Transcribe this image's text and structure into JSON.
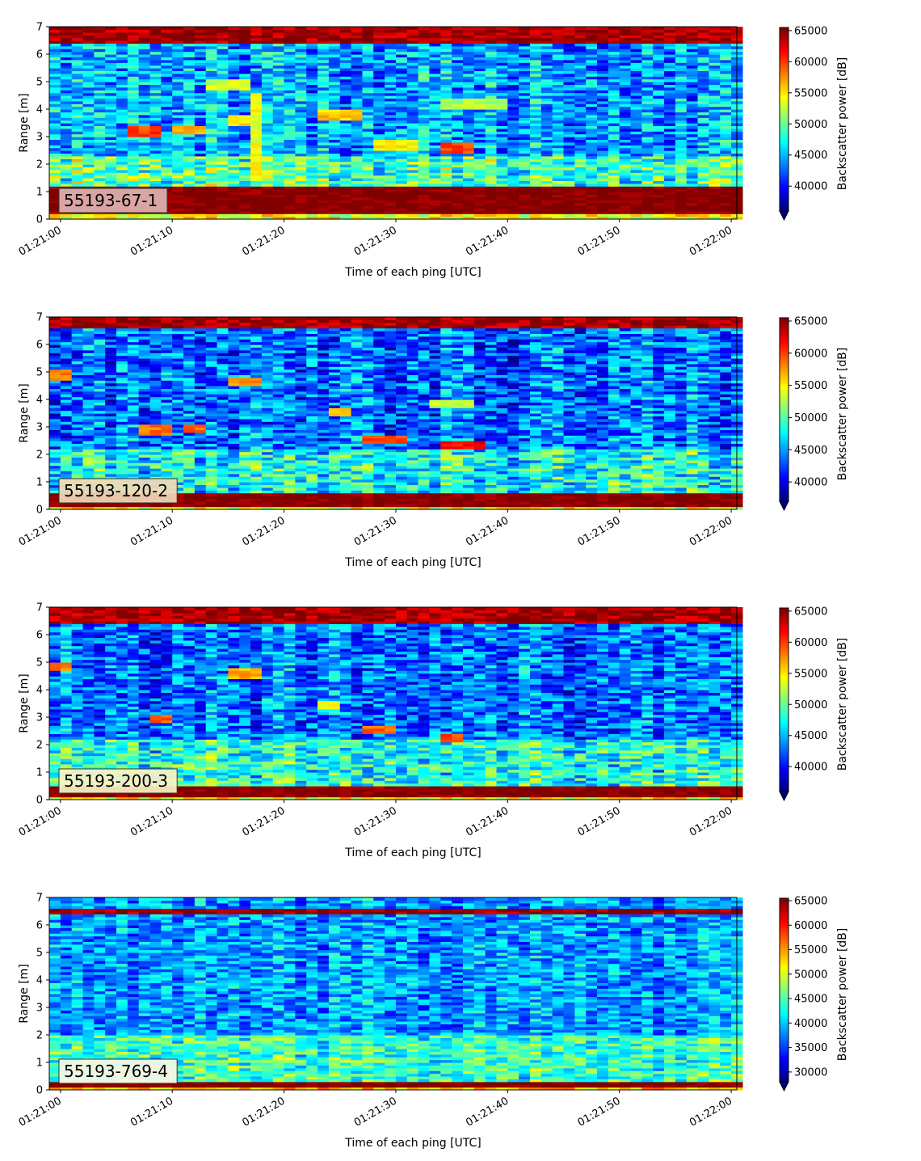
{
  "chart_data": [
    {
      "type": "heatmap",
      "panel_label": "55193-67-1",
      "label_box_color": "#dfb3b3",
      "x_ticks": [
        "01:21:00",
        "01:21:10",
        "01:21:20",
        "01:21:30",
        "01:21:40",
        "01:21:50",
        "01:22:00"
      ],
      "x_range_seconds": [
        -1,
        60.5
      ],
      "xlabel": "Time of each ping [UTC]",
      "ylabel": "Range [m]",
      "y_ticks": [
        "0",
        "1",
        "2",
        "3",
        "4",
        "5",
        "6",
        "7"
      ],
      "ylim": [
        0,
        7
      ],
      "colorbar": {
        "label": "Backscatter power [dB]",
        "ticks": [
          "40000",
          "45000",
          "50000",
          "55000",
          "60000",
          "65000"
        ],
        "vmin": 36000,
        "vmax": 65500,
        "colormap": "jet",
        "extend": "min"
      },
      "profile": {
        "bottom_band": [
          0.25,
          1.2
        ],
        "top_band": [
          6.4,
          7.0
        ],
        "background_mean": 44500,
        "noise": 4500,
        "features": [
          {
            "t": 7.5,
            "r": 3.2,
            "dt": 2.5,
            "dr": 0.35,
            "v": 60000
          },
          {
            "t": 11.5,
            "r": 3.25,
            "dt": 2.0,
            "dr": 0.25,
            "v": 57000
          },
          {
            "t": 16.0,
            "r": 3.6,
            "dt": 2.0,
            "dr": 0.3,
            "v": 55000
          },
          {
            "t": 17.7,
            "r": 3.0,
            "dt": 0.6,
            "dr": 3.0,
            "v": 54000
          },
          {
            "t": 25.0,
            "r": 3.8,
            "dt": 4.0,
            "dr": 0.3,
            "v": 56000
          },
          {
            "t": 30.0,
            "r": 2.7,
            "dt": 4.0,
            "dr": 0.3,
            "v": 55000
          },
          {
            "t": 35.5,
            "r": 2.65,
            "dt": 3.0,
            "dr": 0.3,
            "v": 60000
          },
          {
            "t": 37.0,
            "r": 4.2,
            "dt": 6.0,
            "dr": 0.3,
            "v": 52000
          },
          {
            "t": 15.0,
            "r": 4.9,
            "dt": 4.0,
            "dr": 0.3,
            "v": 53000
          }
        ],
        "bright_range": [
          1.0,
          2.3
        ],
        "bright_boost": 6000
      }
    },
    {
      "type": "heatmap",
      "panel_label": "55193-120-2",
      "label_box_color": "#f2d9b8",
      "x_ticks": [
        "01:21:00",
        "01:21:10",
        "01:21:20",
        "01:21:30",
        "01:21:40",
        "01:21:50",
        "01:22:00"
      ],
      "x_range_seconds": [
        -1,
        60.5
      ],
      "xlabel": "Time of each ping [UTC]",
      "ylabel": "Range [m]",
      "y_ticks": [
        "0",
        "1",
        "2",
        "3",
        "4",
        "5",
        "6",
        "7"
      ],
      "ylim": [
        0,
        7
      ],
      "colorbar": {
        "label": "Backscatter power [dB]",
        "ticks": [
          "40000",
          "45000",
          "50000",
          "55000",
          "60000",
          "65000"
        ],
        "vmin": 37000,
        "vmax": 65500,
        "colormap": "jet",
        "extend": "min"
      },
      "profile": {
        "bottom_band": [
          0.1,
          0.55
        ],
        "top_band": [
          6.55,
          7.0
        ],
        "background_mean": 43500,
        "noise": 4500,
        "features": [
          {
            "t": 8.5,
            "r": 2.95,
            "dt": 2.0,
            "dr": 0.3,
            "v": 59000
          },
          {
            "t": 12.0,
            "r": 2.95,
            "dt": 1.0,
            "dr": 0.25,
            "v": 59000
          },
          {
            "t": 16.5,
            "r": 4.65,
            "dt": 2.0,
            "dr": 0.2,
            "v": 58000
          },
          {
            "t": 25.0,
            "r": 3.55,
            "dt": 2.0,
            "dr": 0.2,
            "v": 57000
          },
          {
            "t": 29.0,
            "r": 2.55,
            "dt": 2.5,
            "dr": 0.2,
            "v": 60000
          },
          {
            "t": 36.0,
            "r": 2.4,
            "dt": 2.5,
            "dr": 0.2,
            "v": 62000
          },
          {
            "t": 35.0,
            "r": 3.9,
            "dt": 3.0,
            "dr": 0.2,
            "v": 53000
          },
          {
            "t": 0.0,
            "r": 4.9,
            "dt": 1.5,
            "dr": 0.25,
            "v": 58000
          }
        ],
        "bright_range": [
          0.6,
          2.2
        ],
        "bright_boost": 5500
      }
    },
    {
      "type": "heatmap",
      "panel_label": "55193-200-3",
      "label_box_color": "#fbf2c6",
      "x_ticks": [
        "01:21:00",
        "01:21:10",
        "01:21:20",
        "01:21:30",
        "01:21:40",
        "01:21:50",
        "01:22:00"
      ],
      "x_range_seconds": [
        -1,
        60.5
      ],
      "xlabel": "Time of each ping [UTC]",
      "ylabel": "Range [m]",
      "y_ticks": [
        "0",
        "1",
        "2",
        "3",
        "4",
        "5",
        "6",
        "7"
      ],
      "ylim": [
        0,
        7
      ],
      "colorbar": {
        "label": "Backscatter power [dB]",
        "ticks": [
          "40000",
          "45000",
          "50000",
          "55000",
          "60000",
          "65000"
        ],
        "vmin": 36000,
        "vmax": 65500,
        "colormap": "jet",
        "extend": "min"
      },
      "profile": {
        "bottom_band": [
          0.1,
          0.45
        ],
        "top_band": [
          6.4,
          7.0
        ],
        "background_mean": 43000,
        "noise": 4500,
        "features": [
          {
            "t": 9.0,
            "r": 2.95,
            "dt": 1.5,
            "dr": 0.25,
            "v": 59000
          },
          {
            "t": 16.5,
            "r": 4.6,
            "dt": 2.0,
            "dr": 0.2,
            "v": 57000
          },
          {
            "t": 28.5,
            "r": 2.55,
            "dt": 2.5,
            "dr": 0.2,
            "v": 59000
          },
          {
            "t": 35.0,
            "r": 2.3,
            "dt": 1.5,
            "dr": 0.2,
            "v": 60000
          },
          {
            "t": 0.0,
            "r": 4.85,
            "dt": 1.5,
            "dr": 0.25,
            "v": 58000
          },
          {
            "t": 24.0,
            "r": 3.5,
            "dt": 1.5,
            "dr": 0.2,
            "v": 54000
          }
        ],
        "bright_range": [
          0.4,
          2.2
        ],
        "bright_boost": 6500
      }
    },
    {
      "type": "heatmap",
      "panel_label": "55193-769-4",
      "label_box_color": "#fbf7e6",
      "x_ticks": [
        "01:21:00",
        "01:21:10",
        "01:21:20",
        "01:21:30",
        "01:21:40",
        "01:21:50",
        "01:22:00"
      ],
      "x_range_seconds": [
        -1,
        60.5
      ],
      "xlabel": "Time of each ping [UTC]",
      "ylabel": "Range [m]",
      "y_ticks": [
        "0",
        "1",
        "2",
        "3",
        "4",
        "5",
        "6",
        "7"
      ],
      "ylim": [
        0,
        7
      ],
      "colorbar": {
        "label": "Backscatter power [dB]",
        "ticks": [
          "30000",
          "35000",
          "40000",
          "45000",
          "50000",
          "55000",
          "60000",
          "65000"
        ],
        "vmin": 28000,
        "vmax": 65500,
        "colormap": "jet",
        "extend": "min"
      },
      "profile": {
        "bottom_band": [
          0.15,
          0.35
        ],
        "top_band": [
          6.35,
          6.6
        ],
        "background_mean": 38500,
        "noise": 5000,
        "features": [],
        "bright_range": [
          0.3,
          2.0
        ],
        "bright_boost": 7000
      }
    }
  ]
}
